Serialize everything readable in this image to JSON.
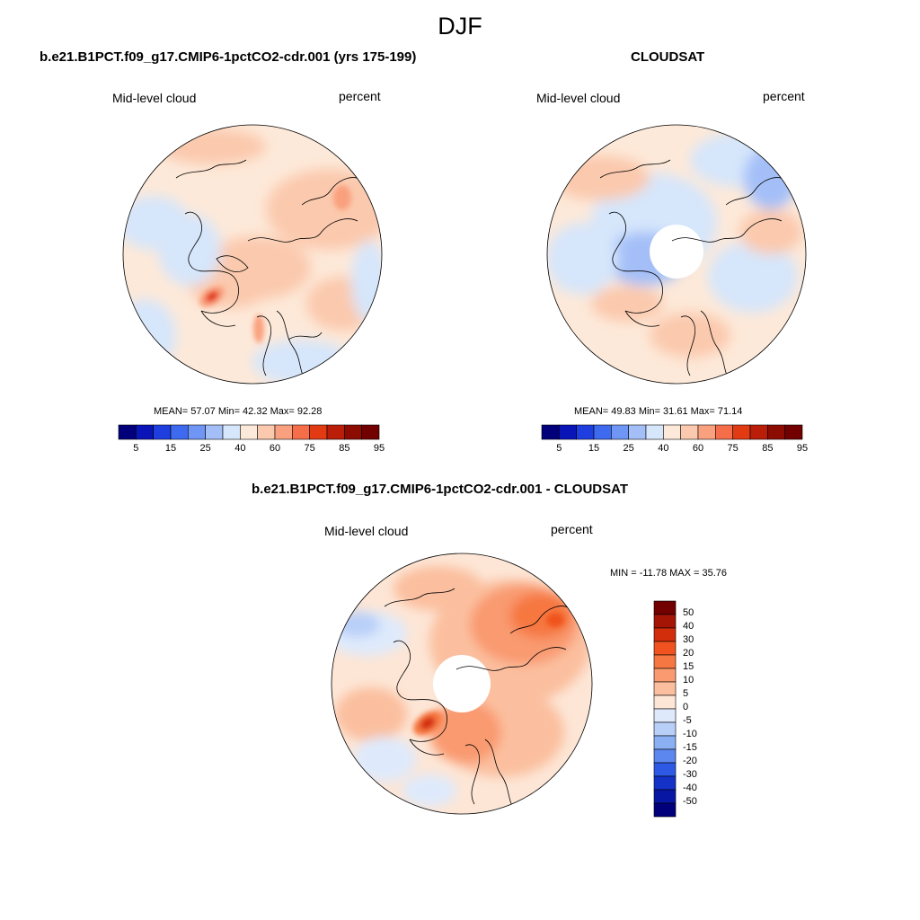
{
  "figure": {
    "season": "DJF"
  },
  "panels": [
    {
      "id": "model",
      "title": "b.e21.B1PCT.f09_g17.CMIP6-1pctCO2-cdr.001 (yrs 175-199)",
      "left_label": "Mid-level cloud",
      "right_label": "percent",
      "stats": {
        "mean": "57.07",
        "min": "42.32",
        "max": "92.28",
        "text": "MEAN=  57.07  Min=  42.32  Max=  92.28"
      }
    },
    {
      "id": "obs",
      "title": "CLOUDSAT",
      "left_label": "Mid-level cloud",
      "right_label": "percent",
      "stats": {
        "mean": "49.83",
        "min": "31.61",
        "max": "71.14",
        "text": "MEAN=  49.83  Min=  31.61  Max=  71.14"
      }
    },
    {
      "id": "diff",
      "title": "b.e21.B1PCT.f09_g17.CMIP6-1pctCO2-cdr.001 - CLOUDSAT",
      "left_label": "Mid-level cloud",
      "right_label": "percent",
      "stats": {
        "min": "-11.78",
        "max": "35.76",
        "text": "MIN = -11.78 MAX =  35.76"
      }
    }
  ],
  "colorbars": {
    "absolute": {
      "ticks": [
        "5",
        "15",
        "25",
        "40",
        "60",
        "75",
        "85",
        "95"
      ],
      "colors": [
        "#01007a",
        "#0a15b8",
        "#1e3ee0",
        "#3d6aef",
        "#6f95f5",
        "#a4bff8",
        "#d6e6fb",
        "#fde9d9",
        "#fbc9ad",
        "#f9a07e",
        "#f56e49",
        "#e23a13",
        "#ba1d08",
        "#8c0c02",
        "#720000"
      ]
    },
    "difference": {
      "ticks": [
        "50",
        "40",
        "30",
        "20",
        "15",
        "10",
        "5",
        "0",
        "-5",
        "-10",
        "-15",
        "-20",
        "-30",
        "-40",
        "-50"
      ],
      "colors": [
        "#720000",
        "#a41505",
        "#d32e0c",
        "#f0531f",
        "#f67741",
        "#f99a70",
        "#fbbf9f",
        "#fde6d6",
        "#deeafc",
        "#b8cff8",
        "#8ab0f3",
        "#5b87ee",
        "#2e59e5",
        "#1431c8",
        "#0817a3",
        "#01007a"
      ]
    }
  }
}
